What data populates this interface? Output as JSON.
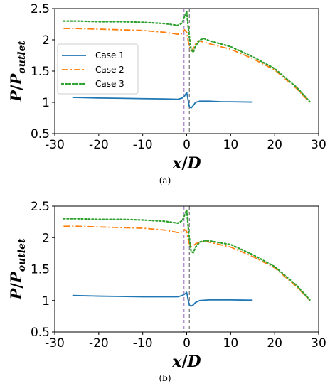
{
  "chart_data": [
    {
      "type": "line",
      "caption": "(a)",
      "xlabel": "x/D",
      "ylabel": "P/P_outlet",
      "xlim": [
        -30,
        30
      ],
      "ylim": [
        0.5,
        2.5
      ],
      "xticks": [
        -30,
        -20,
        -10,
        0,
        10,
        20,
        30
      ],
      "yticks": [
        0.5,
        1,
        1.5,
        2,
        2.5
      ],
      "xtick_labels": [
        "-30",
        "-20",
        "-10",
        "0",
        "10",
        "20",
        "30"
      ],
      "ytick_labels": [
        "0.5",
        "1",
        "1.5",
        "2",
        "2.5"
      ],
      "legend_position": "center-left",
      "vlines": [
        -0.6,
        0.6
      ],
      "series": [
        {
          "name": "Case 1",
          "style": "solid",
          "color": "#1f77b4",
          "x": [
            -26,
            -20,
            -15,
            -10,
            -5,
            -2,
            -1,
            -0.5,
            0,
            0.3,
            0.6,
            1,
            1.5,
            2,
            3,
            5,
            8,
            10,
            15
          ],
          "y": [
            1.08,
            1.07,
            1.065,
            1.06,
            1.055,
            1.05,
            1.07,
            1.1,
            1.16,
            1.05,
            0.93,
            0.91,
            0.95,
            1.0,
            1.02,
            1.02,
            1.01,
            1.01,
            1.005
          ]
        },
        {
          "name": "Case 2",
          "style": "dashdot",
          "color": "#ff7f0e",
          "x": [
            -28,
            -25,
            -20,
            -15,
            -10,
            -5,
            -2,
            -1,
            -0.5,
            0,
            0.5,
            1,
            1.5,
            2,
            2.5,
            3,
            5,
            10,
            15,
            20,
            25,
            28
          ],
          "y": [
            2.18,
            2.18,
            2.17,
            2.16,
            2.15,
            2.12,
            2.09,
            2.1,
            2.16,
            2.12,
            1.92,
            1.82,
            1.86,
            1.93,
            1.97,
            1.98,
            1.94,
            1.85,
            1.7,
            1.52,
            1.22,
            1.0
          ]
        },
        {
          "name": "Case 3",
          "style": "dotted",
          "color": "#2ca02c",
          "x": [
            -28,
            -25,
            -20,
            -15,
            -10,
            -5,
            -2,
            -1,
            -0.5,
            0,
            0.5,
            1,
            1.5,
            2,
            3,
            4,
            5,
            10,
            15,
            20,
            25,
            28
          ],
          "y": [
            2.3,
            2.3,
            2.29,
            2.29,
            2.28,
            2.26,
            2.23,
            2.27,
            2.37,
            2.45,
            2.1,
            1.85,
            1.8,
            1.9,
            2.0,
            2.02,
            1.99,
            1.89,
            1.73,
            1.54,
            1.24,
            1.01
          ]
        }
      ]
    },
    {
      "type": "line",
      "caption": "(b)",
      "xlabel": "x/D",
      "ylabel": "P/P_outlet",
      "xlim": [
        -30,
        30
      ],
      "ylim": [
        0.5,
        2.5
      ],
      "xticks": [
        -30,
        -20,
        -10,
        0,
        10,
        20,
        30
      ],
      "yticks": [
        0.5,
        1,
        1.5,
        2,
        2.5
      ],
      "xtick_labels": [
        "-30",
        "-20",
        "-10",
        "0",
        "10",
        "20",
        "30"
      ],
      "ytick_labels": [
        "0.5",
        "1",
        "1.5",
        "2",
        "2.5"
      ],
      "vlines": [
        -0.6,
        0.6
      ],
      "series": [
        {
          "name": "",
          "style": "solid",
          "color": "#1f77b4",
          "x": [
            -26,
            -20,
            -15,
            -10,
            -5,
            -2,
            -1,
            -0.5,
            0,
            0.3,
            0.6,
            1,
            1.5,
            2,
            3,
            5,
            8,
            10,
            15
          ],
          "y": [
            1.08,
            1.07,
            1.065,
            1.06,
            1.06,
            1.06,
            1.08,
            1.1,
            1.13,
            1.02,
            0.93,
            0.91,
            0.93,
            0.97,
            1.0,
            1.01,
            1.01,
            1.01,
            1.005
          ]
        },
        {
          "name": "",
          "style": "dashdot",
          "color": "#ff7f0e",
          "x": [
            -28,
            -25,
            -20,
            -15,
            -10,
            -5,
            -2,
            -1,
            -0.5,
            0,
            0.5,
            1,
            1.5,
            2,
            3,
            4,
            5,
            10,
            15,
            20,
            25,
            28
          ],
          "y": [
            2.18,
            2.18,
            2.17,
            2.16,
            2.15,
            2.12,
            2.08,
            2.09,
            2.13,
            2.1,
            1.92,
            1.85,
            1.87,
            1.9,
            1.93,
            1.94,
            1.93,
            1.85,
            1.7,
            1.52,
            1.22,
            1.0
          ]
        },
        {
          "name": "",
          "style": "dotted",
          "color": "#2ca02c",
          "x": [
            -28,
            -25,
            -20,
            -15,
            -10,
            -5,
            -2,
            -1,
            -0.5,
            0,
            0.5,
            1,
            1.5,
            2,
            3,
            4,
            5,
            10,
            15,
            20,
            25,
            28
          ],
          "y": [
            2.3,
            2.3,
            2.29,
            2.29,
            2.28,
            2.26,
            2.23,
            2.27,
            2.35,
            2.44,
            2.05,
            1.78,
            1.76,
            1.85,
            1.93,
            1.95,
            1.95,
            1.89,
            1.73,
            1.54,
            1.24,
            1.01
          ]
        }
      ]
    }
  ]
}
